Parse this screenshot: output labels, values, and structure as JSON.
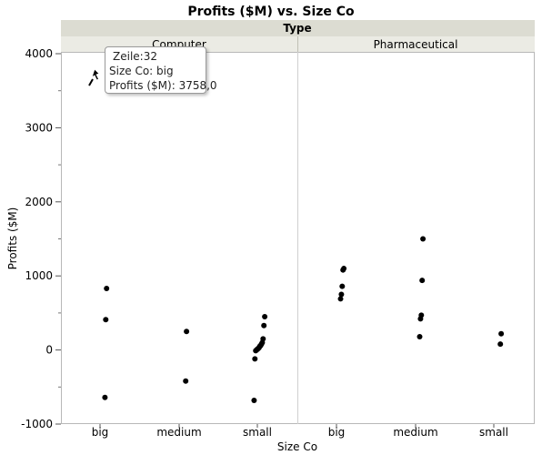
{
  "chart_data": {
    "type": "scatter",
    "title": "Profits ($M) vs. Size Co",
    "group_label": "Type",
    "groups": [
      "Computer",
      "Pharmaceutical"
    ],
    "xlabel": "Size Co",
    "ylabel": "Profits ($M)",
    "categories": [
      "big",
      "medium",
      "small"
    ],
    "ylim": [
      -1000,
      4000
    ],
    "y_ticks": [
      "-1000",
      "0",
      "1000",
      "2000",
      "3000",
      "4000"
    ],
    "y_tick_values": [
      -1000,
      0,
      1000,
      2000,
      3000,
      4000
    ],
    "marker_color": "#000000",
    "panels": [
      {
        "group": "Computer",
        "points": [
          {
            "x": "big",
            "y": 3758
          },
          {
            "x": "big",
            "y": 830
          },
          {
            "x": "big",
            "y": 410
          },
          {
            "x": "big",
            "y": -640
          },
          {
            "x": "medium",
            "y": 250
          },
          {
            "x": "medium",
            "y": -420
          },
          {
            "x": "small",
            "y": 450
          },
          {
            "x": "small",
            "y": 330
          },
          {
            "x": "small",
            "y": 150
          },
          {
            "x": "small",
            "y": 100
          },
          {
            "x": "small",
            "y": 80
          },
          {
            "x": "small",
            "y": 60
          },
          {
            "x": "small",
            "y": 50
          },
          {
            "x": "small",
            "y": 30
          },
          {
            "x": "small",
            "y": 20
          },
          {
            "x": "small",
            "y": 10
          },
          {
            "x": "small",
            "y": 0
          },
          {
            "x": "small",
            "y": -10
          },
          {
            "x": "small",
            "y": -120
          },
          {
            "x": "small",
            "y": -680
          }
        ]
      },
      {
        "group": "Pharmaceutical",
        "points": [
          {
            "x": "big",
            "y": 1100
          },
          {
            "x": "big",
            "y": 1080
          },
          {
            "x": "big",
            "y": 860
          },
          {
            "x": "big",
            "y": 750
          },
          {
            "x": "big",
            "y": 690
          },
          {
            "x": "medium",
            "y": 1500
          },
          {
            "x": "medium",
            "y": 940
          },
          {
            "x": "medium",
            "y": 470
          },
          {
            "x": "medium",
            "y": 420
          },
          {
            "x": "medium",
            "y": 180
          },
          {
            "x": "small",
            "y": 220
          },
          {
            "x": "small",
            "y": 80
          }
        ]
      }
    ]
  },
  "tooltip": {
    "line1": "Zeile:32",
    "line2": "Size Co: big",
    "line3": "Profits ($M): 3758,0"
  }
}
